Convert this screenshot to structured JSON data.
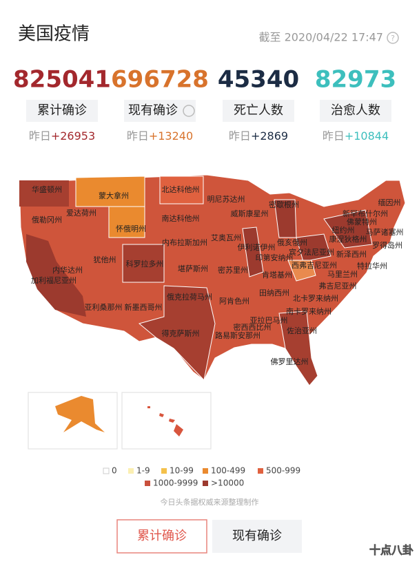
{
  "header": {
    "title": "美国疫情",
    "timestamp": "截至 2020/04/22 17:47"
  },
  "stats": [
    {
      "value": "825041",
      "label": "累计确诊",
      "prefix": "昨日",
      "delta": "+26953",
      "color": "#a3282d"
    },
    {
      "value": "696728",
      "label": "现有确诊",
      "prefix": "昨日",
      "delta": "+13240",
      "color": "#d8732c"
    },
    {
      "value": "45340",
      "label": "死亡人数",
      "prefix": "昨日",
      "delta": "+2869",
      "color": "#1c2c44"
    },
    {
      "value": "82973",
      "label": "治愈人数",
      "prefix": "昨日",
      "delta": "+10844",
      "color": "#3dbfbd"
    }
  ],
  "map": {
    "states": [
      "华盛顿州",
      "俄勒冈州",
      "爱达荷州",
      "蒙大拿州",
      "北达科他州",
      "怀俄明州",
      "南达科他州",
      "明尼苏达州",
      "威斯康星州",
      "密歇根州",
      "内布拉斯加州",
      "艾奥瓦州",
      "伊利诺伊州",
      "印第安纳州",
      "俄亥俄州",
      "宾夕法尼亚州",
      "纽约州",
      "新罕布什尔州",
      "缅因州",
      "佛蒙特州",
      "马萨诸塞州",
      "康涅狄格州",
      "罗得岛州",
      "新泽西州",
      "特拉华州",
      "马里兰州",
      "西弗吉尼亚州",
      "弗吉尼亚州",
      "内华达州",
      "加利福尼亚州",
      "犹他州",
      "科罗拉多州",
      "堪萨斯州",
      "密苏里州",
      "肯塔基州",
      "亚利桑那州",
      "新墨西哥州",
      "俄克拉荷马州",
      "阿肯色州",
      "田纳西州",
      "北卡罗来纳州",
      "南卡罗来纳州",
      "密西西比州",
      "亚拉巴马州",
      "佐治亚州",
      "路易斯安那州",
      "得克萨斯州",
      "佛罗里达州"
    ],
    "insets": [
      "阿拉斯加州",
      "夏威夷州"
    ]
  },
  "legend": [
    {
      "label": "0",
      "color": "#ffffff"
    },
    {
      "label": "1-9",
      "color": "#fbefb2"
    },
    {
      "label": "10-99",
      "color": "#f4c14b"
    },
    {
      "label": "100-499",
      "color": "#ea8a2f"
    },
    {
      "label": "500-999",
      "color": "#e0613f"
    },
    {
      "label": "1000-9999",
      "color": "#c9503c"
    },
    {
      "label": ">10000",
      "color": "#9c3a2e"
    }
  ],
  "source": "今日头条据权威来源整理制作",
  "buttons": [
    "累计确诊",
    "现有确诊"
  ],
  "watermark": "十点八卦"
}
